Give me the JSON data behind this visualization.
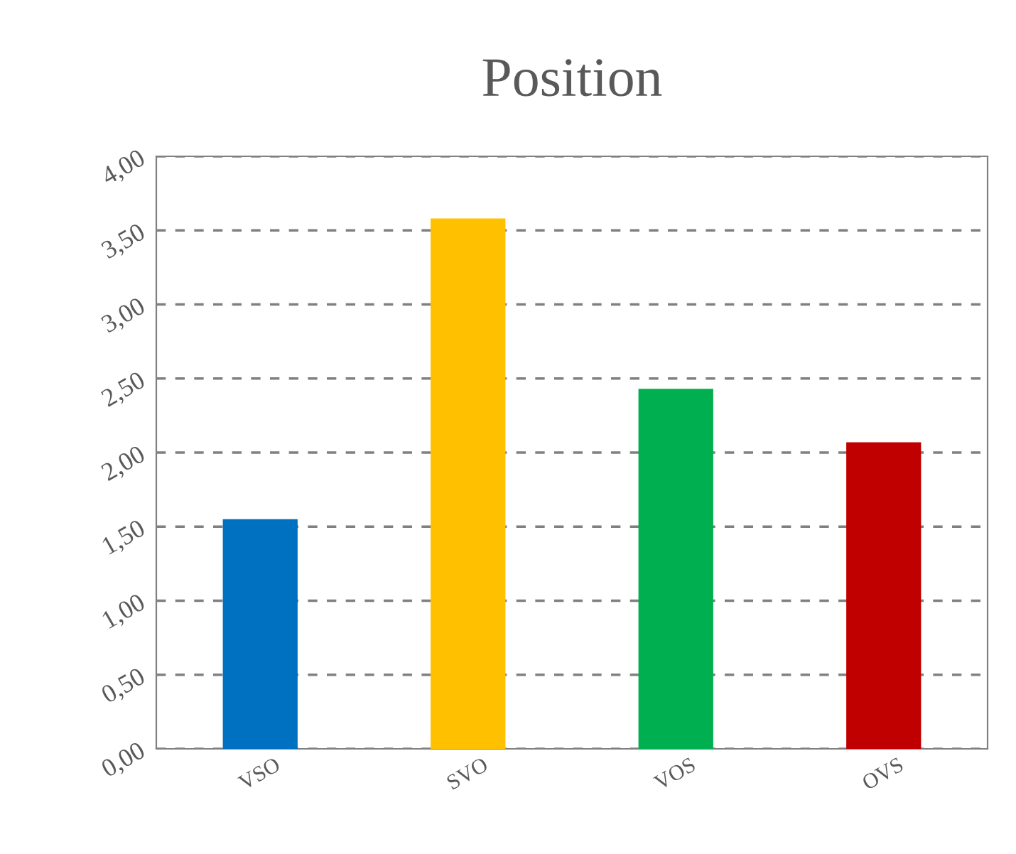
{
  "chart_data": {
    "type": "bar",
    "title": "Position",
    "categories": [
      "VSO",
      "SVO",
      "VOS",
      "OVS"
    ],
    "values": [
      1.55,
      3.58,
      2.43,
      2.07
    ],
    "colors": [
      "#0070c0",
      "#ffc000",
      "#00b050",
      "#c00000"
    ],
    "ylim": [
      0,
      4
    ],
    "yticks": [
      {
        "value": 0,
        "label": "0,00"
      },
      {
        "value": 0.5,
        "label": "0,50"
      },
      {
        "value": 1,
        "label": "1,00"
      },
      {
        "value": 1.5,
        "label": "1,50"
      },
      {
        "value": 2,
        "label": "2,00"
      },
      {
        "value": 2.5,
        "label": "2,50"
      },
      {
        "value": 3,
        "label": "3,00"
      },
      {
        "value": 3.5,
        "label": "3,50"
      },
      {
        "value": 4,
        "label": "4,00"
      }
    ],
    "grid": "y"
  }
}
